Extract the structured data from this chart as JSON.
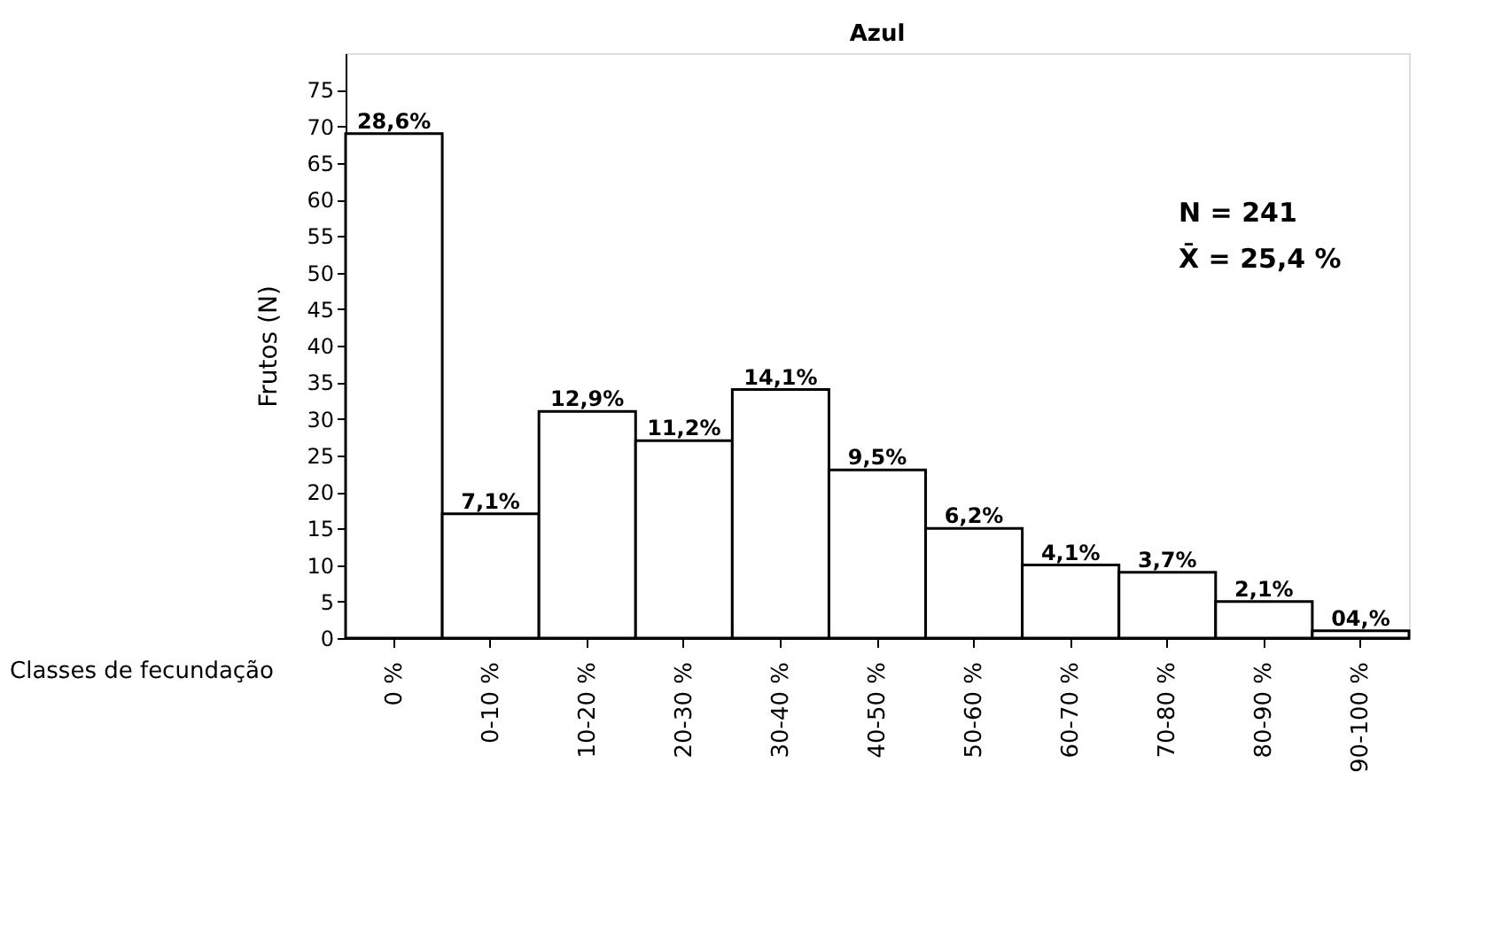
{
  "chart_data": {
    "type": "bar",
    "title": "Azul",
    "xlabel": "Classes de fecundação",
    "ylabel": "Frutos (N)",
    "categories": [
      "0 %",
      "0-10 %",
      "10-20 %",
      "20-30 %",
      "30-40 %",
      "40-50 %",
      "50-60 %",
      "60-70 %",
      "70-80 %",
      "80-90 %",
      "90-100 %"
    ],
    "values": [
      69,
      17,
      31,
      27,
      34,
      23,
      15,
      10,
      9,
      5,
      1
    ],
    "color": "#ffffff",
    "ylim": [
      0,
      80
    ],
    "yticks": [
      0,
      5,
      10,
      15,
      20,
      25,
      30,
      35,
      40,
      45,
      50,
      55,
      60,
      65,
      70,
      75
    ],
    "annotations": [
      "N  =  241",
      "X̄  =  25,4 %",
      {
        "text": "28,6%",
        "x": "0 %",
        "y": 69
      },
      {
        "text": "7,1%",
        "x": "0-10 %",
        "y": 17
      },
      {
        "text": "12,9%",
        "x": "10-20 %",
        "y": 31
      },
      {
        "text": "11,2%",
        "x": "20-30 %",
        "y": 27
      },
      {
        "text": "14,1%",
        "x": "30-40 %",
        "y": 34
      },
      {
        "text": "9,5%",
        "x": "40-50 %",
        "y": 23
      },
      {
        "text": "6,2%",
        "x": "50-60 %",
        "y": 15
      },
      {
        "text": "4,1%",
        "x": "60-70 %",
        "y": 10
      },
      {
        "text": "3,7%",
        "x": "70-80 %",
        "y": 9
      },
      {
        "text": "2,1%",
        "x": "80-90 %",
        "y": 5
      },
      {
        "text": "04,%",
        "x": "90-100 %",
        "y": 1
      }
    ],
    "grid": false
  }
}
